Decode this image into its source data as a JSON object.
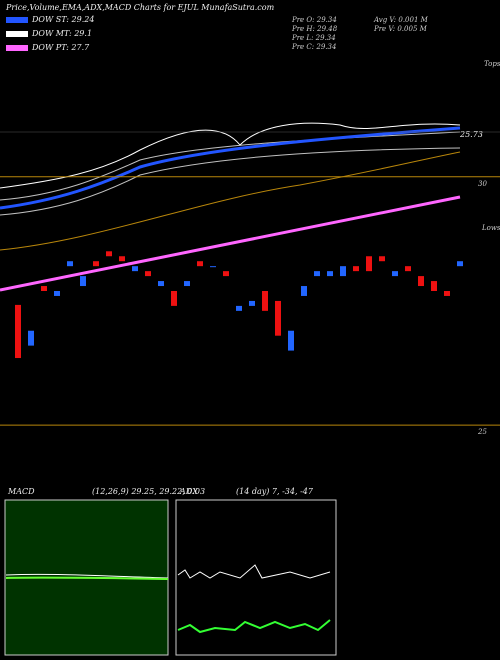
{
  "header": {
    "title": "Price,Volume,EMA,ADX,MACD Charts for EJUL MunafaSutra.com",
    "legend": [
      {
        "label": "DOW ST: 29.24",
        "color": "#2255ff"
      },
      {
        "label": "DOW MT: 29.1",
        "color": "#ffffff"
      },
      {
        "label": "DOW PT: 27.7",
        "color": "#ff66ff"
      }
    ],
    "stats": [
      "Pre O: 29.34",
      "Pre H: 29.48",
      "Pre L: 29.34",
      "Pre C: 29.34",
      "Avg V: 0.001 M",
      "Pre V: 0.005 M"
    ]
  },
  "top_panel": {
    "label": "Tops",
    "level": "25.73"
  },
  "chart_data": {
    "type": "candlestick",
    "ylim": [
      24.8,
      30.6
    ],
    "yticks": [
      25,
      30
    ],
    "lows_label": "Lows",
    "up_color": "#2266ff",
    "down_color": "#ee1111",
    "open": [
      27.42,
      26.6,
      27.8,
      27.6,
      28.2,
      27.8,
      28.3,
      28.5,
      28.4,
      28.1,
      28.1,
      27.8,
      27.7,
      27.8,
      28.3,
      28.2,
      28.1,
      27.3,
      27.4,
      27.7,
      27.5,
      26.5,
      27.6,
      28.0,
      28.0,
      28.0,
      28.2,
      28.4,
      28.4,
      28.0,
      28.2,
      28.0,
      27.9,
      27.7,
      28.2
    ],
    "close": [
      26.35,
      26.9,
      27.7,
      27.7,
      28.3,
      28.0,
      28.2,
      28.4,
      28.3,
      28.2,
      28.0,
      27.9,
      27.4,
      27.9,
      28.2,
      28.2,
      28.0,
      27.4,
      27.5,
      27.3,
      26.8,
      26.9,
      27.8,
      28.1,
      28.1,
      28.2,
      28.1,
      28.1,
      28.3,
      28.1,
      28.1,
      27.8,
      27.7,
      27.6,
      28.3
    ]
  },
  "macd": {
    "label": "MACD",
    "params": "(12,26,9) 29.25, 29.22, 0.03"
  },
  "adx": {
    "label": "ADX",
    "params": "(14 day) 7, -34, -47"
  }
}
